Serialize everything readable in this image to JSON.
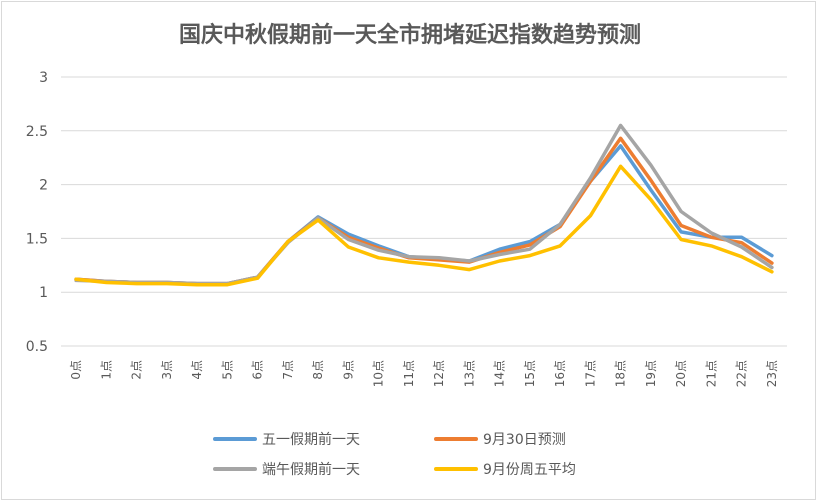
{
  "chart_data": {
    "type": "line",
    "title": "国庆中秋假期前一天全市拥堵延迟指数趋势预测",
    "categories": [
      "0点",
      "1点",
      "2点",
      "3点",
      "4点",
      "5点",
      "6点",
      "7点",
      "8点",
      "9点",
      "10点",
      "11点",
      "12点",
      "13点",
      "14点",
      "15点",
      "16点",
      "17点",
      "18点",
      "19点",
      "20点",
      "21点",
      "22点",
      "23点"
    ],
    "ylim": [
      0.5,
      3
    ],
    "yticks": [
      "0.5",
      "1",
      "1.5",
      "2",
      "2.5",
      "3"
    ],
    "grid": true,
    "legend_position": "bottom",
    "series": [
      {
        "name": "五一假期前一天",
        "color": "#5B9BD5",
        "values": [
          1.12,
          1.1,
          1.09,
          1.09,
          1.08,
          1.08,
          1.14,
          1.47,
          1.7,
          1.54,
          1.43,
          1.33,
          1.31,
          1.29,
          1.4,
          1.47,
          1.63,
          2.03,
          2.36,
          1.95,
          1.56,
          1.51,
          1.51,
          1.34
        ]
      },
      {
        "name": "9月30日预测",
        "color": "#ED7D31",
        "values": [
          1.12,
          1.1,
          1.09,
          1.09,
          1.08,
          1.08,
          1.14,
          1.47,
          1.69,
          1.51,
          1.41,
          1.32,
          1.3,
          1.28,
          1.37,
          1.44,
          1.61,
          2.03,
          2.43,
          2.04,
          1.62,
          1.51,
          1.46,
          1.27
        ]
      },
      {
        "name": "端午假期前一天",
        "color": "#A5A5A5",
        "values": [
          1.11,
          1.1,
          1.09,
          1.09,
          1.08,
          1.08,
          1.14,
          1.46,
          1.69,
          1.49,
          1.39,
          1.33,
          1.32,
          1.29,
          1.35,
          1.4,
          1.63,
          2.06,
          2.55,
          2.18,
          1.75,
          1.55,
          1.42,
          1.23
        ]
      },
      {
        "name": "9月份周五平均",
        "color": "#FFC000",
        "values": [
          1.12,
          1.09,
          1.08,
          1.08,
          1.07,
          1.07,
          1.13,
          1.47,
          1.67,
          1.42,
          1.32,
          1.28,
          1.25,
          1.21,
          1.29,
          1.34,
          1.43,
          1.71,
          2.17,
          1.86,
          1.49,
          1.43,
          1.33,
          1.19
        ]
      }
    ]
  }
}
